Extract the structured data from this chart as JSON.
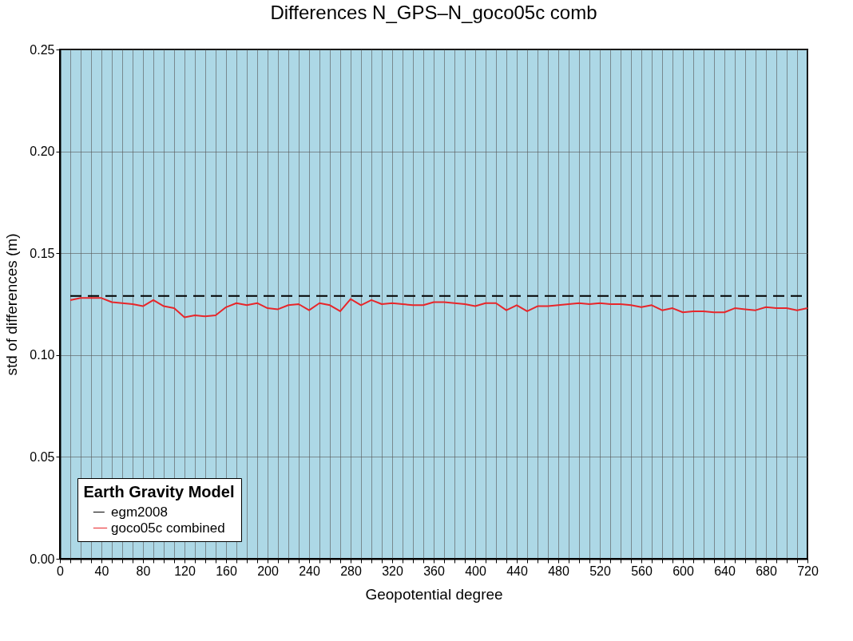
{
  "chart_data": {
    "type": "line",
    "title": "Differences N_GPS–N_goco05c comb",
    "xlabel": "Geopotential degree",
    "ylabel": "std of differences (m)",
    "legend_title": "Earth Gravity Model",
    "x": [
      10,
      20,
      30,
      40,
      50,
      60,
      70,
      80,
      90,
      100,
      110,
      120,
      130,
      140,
      150,
      160,
      170,
      180,
      190,
      200,
      210,
      220,
      230,
      240,
      250,
      260,
      270,
      280,
      290,
      300,
      310,
      320,
      330,
      340,
      350,
      360,
      370,
      380,
      390,
      400,
      410,
      420,
      430,
      440,
      450,
      460,
      470,
      480,
      490,
      500,
      510,
      520,
      530,
      540,
      550,
      560,
      570,
      580,
      590,
      600,
      610,
      620,
      630,
      640,
      650,
      660,
      670,
      680,
      690,
      700,
      710,
      720
    ],
    "series": [
      {
        "name": "egm2008",
        "color": "#000000",
        "line_style": "dashed",
        "x": [
          10,
          720
        ],
        "values": [
          0.129,
          0.129
        ]
      },
      {
        "name": "goco05c combined",
        "color": "#e8262a",
        "line_style": "solid",
        "values": [
          0.127,
          0.128,
          0.128,
          0.128,
          0.126,
          0.1255,
          0.125,
          0.124,
          0.127,
          0.124,
          0.123,
          0.1185,
          0.1195,
          0.119,
          0.1195,
          0.1235,
          0.1255,
          0.1245,
          0.1255,
          0.123,
          0.1225,
          0.1245,
          0.125,
          0.122,
          0.1255,
          0.1245,
          0.1215,
          0.1275,
          0.1245,
          0.127,
          0.125,
          0.1255,
          0.125,
          0.1245,
          0.1245,
          0.126,
          0.126,
          0.1255,
          0.125,
          0.124,
          0.1255,
          0.1255,
          0.122,
          0.1245,
          0.1215,
          0.124,
          0.124,
          0.1245,
          0.125,
          0.1255,
          0.125,
          0.1255,
          0.125,
          0.125,
          0.1245,
          0.1235,
          0.1245,
          0.122,
          0.123,
          0.121,
          0.1215,
          0.1215,
          0.121,
          0.121,
          0.123,
          0.1225,
          0.122,
          0.1235,
          0.123,
          0.123,
          0.122,
          0.123
        ]
      }
    ],
    "xlim": [
      0,
      720
    ],
    "xticks": [
      0,
      {
        "value": 10,
        "label": null
      },
      {
        "value": 20,
        "label": null
      },
      {
        "value": 30,
        "label": null
      },
      40,
      {
        "value": 50,
        "label": null
      },
      {
        "value": 60,
        "label": null
      },
      {
        "value": 70,
        "label": null
      },
      80,
      {
        "value": 90,
        "label": null
      },
      {
        "value": 100,
        "label": null
      },
      {
        "value": 110,
        "label": null
      },
      120,
      {
        "value": 130,
        "label": null
      },
      {
        "value": 140,
        "label": null
      },
      {
        "value": 150,
        "label": null
      },
      160,
      {
        "value": 170,
        "label": null
      },
      {
        "value": 180,
        "label": null
      },
      {
        "value": 190,
        "label": null
      },
      200,
      {
        "value": 210,
        "label": null
      },
      {
        "value": 220,
        "label": null
      },
      {
        "value": 230,
        "label": null
      },
      240,
      {
        "value": 250,
        "label": null
      },
      {
        "value": 260,
        "label": null
      },
      {
        "value": 270,
        "label": null
      },
      280,
      {
        "value": 290,
        "label": null
      },
      {
        "value": 300,
        "label": null
      },
      {
        "value": 310,
        "label": null
      },
      320,
      {
        "value": 330,
        "label": null
      },
      {
        "value": 340,
        "label": null
      },
      {
        "value": 350,
        "label": null
      },
      360,
      {
        "value": 370,
        "label": null
      },
      {
        "value": 380,
        "label": null
      },
      {
        "value": 390,
        "label": null
      },
      400,
      {
        "value": 410,
        "label": null
      },
      {
        "value": 420,
        "label": null
      },
      {
        "value": 430,
        "label": null
      },
      440,
      {
        "value": 450,
        "label": null
      },
      {
        "value": 460,
        "label": null
      },
      {
        "value": 470,
        "label": null
      },
      480,
      {
        "value": 490,
        "label": null
      },
      {
        "value": 500,
        "label": null
      },
      {
        "value": 510,
        "label": null
      },
      520,
      {
        "value": 530,
        "label": null
      },
      {
        "value": 540,
        "label": null
      },
      {
        "value": 550,
        "label": null
      },
      560,
      {
        "value": 570,
        "label": null
      },
      {
        "value": 580,
        "label": null
      },
      {
        "value": 590,
        "label": null
      },
      600,
      {
        "value": 610,
        "label": null
      },
      {
        "value": 620,
        "label": null
      },
      {
        "value": 630,
        "label": null
      },
      640,
      {
        "value": 650,
        "label": null
      },
      {
        "value": 660,
        "label": null
      },
      {
        "value": 670,
        "label": null
      },
      680,
      {
        "value": 690,
        "label": null
      },
      {
        "value": 700,
        "label": null
      },
      {
        "value": 710,
        "label": null
      },
      720
    ],
    "ylim": [
      0,
      0.25
    ],
    "yticks": [
      {
        "value": 0,
        "label": "0.00"
      },
      0.05,
      {
        "value": 0.1,
        "label": "0.10"
      },
      0.15,
      {
        "value": 0.2,
        "label": "0.20"
      },
      0.25
    ],
    "grid": true,
    "legend": "bottom left",
    "marker": "none"
  }
}
